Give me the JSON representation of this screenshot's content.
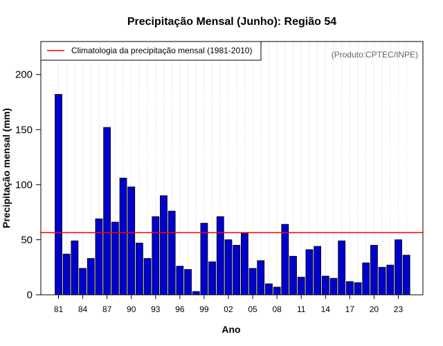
{
  "chart_data": {
    "type": "bar",
    "title": "Precipitação Mensal (Junho): Região 54",
    "xlabel": "Ano",
    "ylabel": "Precipitação mensal (mm)",
    "ylim": [
      0,
      230
    ],
    "yticks": [
      0,
      50,
      100,
      150,
      200
    ],
    "xtick_labels": [
      "81",
      "84",
      "87",
      "90",
      "93",
      "96",
      "99",
      "02",
      "05",
      "08",
      "11",
      "14",
      "17",
      "20",
      "23"
    ],
    "categories": [
      1981,
      1982,
      1983,
      1984,
      1985,
      1986,
      1987,
      1988,
      1989,
      1990,
      1991,
      1992,
      1993,
      1994,
      1995,
      1996,
      1997,
      1998,
      1999,
      2000,
      2001,
      2002,
      2003,
      2004,
      2005,
      2006,
      2007,
      2008,
      2009,
      2010,
      2011,
      2012,
      2013,
      2014,
      2015,
      2016,
      2017,
      2018,
      2019,
      2020,
      2021,
      2022,
      2023,
      2024
    ],
    "values": [
      182,
      37,
      49,
      24,
      33,
      69,
      152,
      66,
      106,
      98,
      47,
      33,
      71,
      90,
      76,
      26,
      23,
      3,
      65,
      30,
      71,
      50,
      45,
      56,
      24,
      31,
      10,
      7,
      64,
      35,
      16,
      41,
      44,
      17,
      15,
      49,
      12,
      11,
      29,
      45,
      25,
      27,
      50,
      36
    ],
    "bar_color": "#0000cc",
    "reference_line": {
      "label": "Climatologia da precipitação mensal (1981-2010)",
      "value": 56.5,
      "color": "#ff0000"
    },
    "legend_position": "top-left",
    "source_note": "(Produto:CPTEC/INPE)",
    "grid": "vertical-dotted"
  }
}
